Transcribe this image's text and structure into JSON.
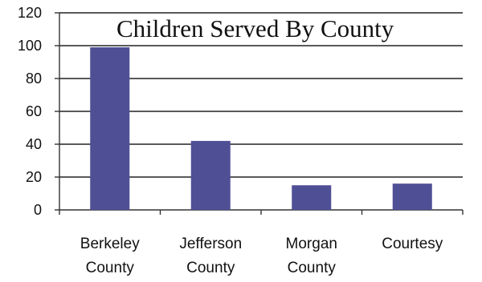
{
  "chart_data": {
    "type": "bar",
    "title": "Children Served By County",
    "categories": [
      [
        "Berkeley",
        "County"
      ],
      [
        "Jefferson",
        "County"
      ],
      [
        "Morgan",
        "County"
      ],
      [
        "Courtesy"
      ]
    ],
    "values": [
      99,
      42,
      15,
      16
    ],
    "ylim": [
      0,
      120
    ],
    "yticks": [
      0,
      20,
      40,
      60,
      80,
      100,
      120
    ],
    "grid": true,
    "legend": "none",
    "colors": {
      "bar": "#4f4f96",
      "grid": "#222222",
      "axis": "#333333"
    }
  }
}
